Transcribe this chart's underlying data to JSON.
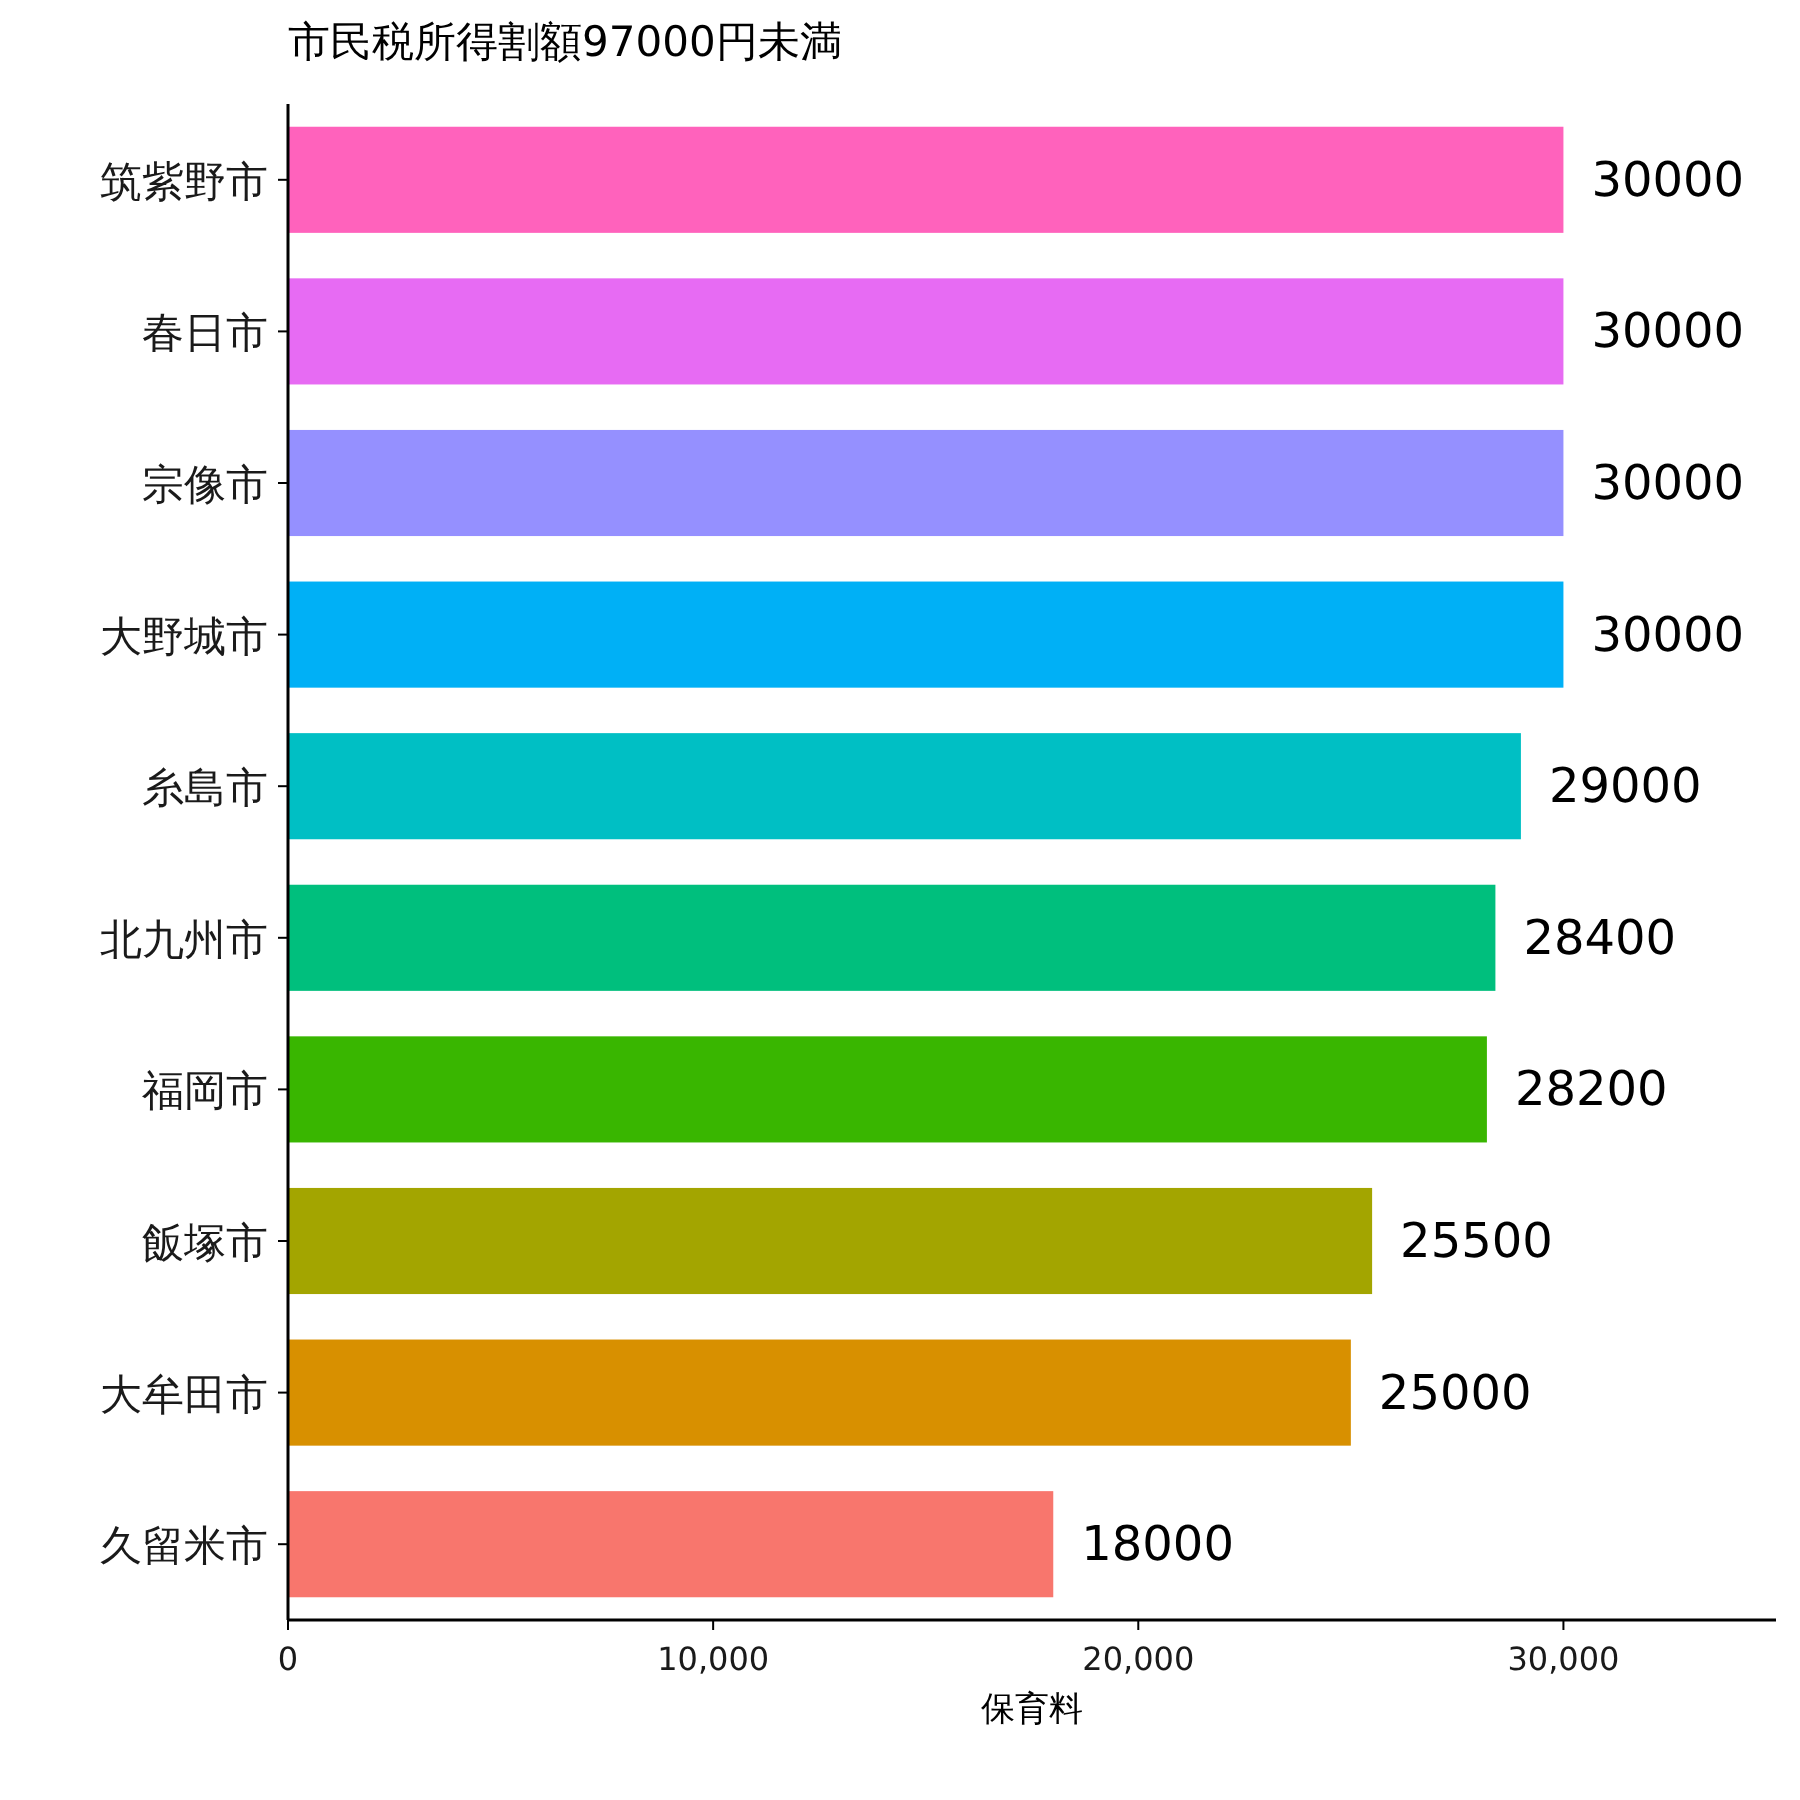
{
  "chart_data": {
    "type": "bar",
    "orientation": "horizontal",
    "title": "市民税所得割額97000円未満",
    "xlabel": "保育料",
    "categories": [
      "筑紫野市",
      "春日市",
      "宗像市",
      "大野城市",
      "糸島市",
      "北九州市",
      "福岡市",
      "飯塚市",
      "大牟田市",
      "久留米市"
    ],
    "values": [
      30000,
      30000,
      30000,
      30000,
      29000,
      28400,
      28200,
      25500,
      25000,
      18000
    ],
    "colors": [
      "#FF62BC",
      "#E76BF3",
      "#9590FF",
      "#00B0F6",
      "#00BFC4",
      "#00BF7D",
      "#39B600",
      "#A3A500",
      "#D89000",
      "#F8766D"
    ],
    "xlim": [
      0,
      35000
    ],
    "xticks": [
      {
        "value": 0,
        "label": "0"
      },
      {
        "value": 10000,
        "label": "10,000"
      },
      {
        "value": 20000,
        "label": "20,000"
      },
      {
        "value": 30000,
        "label": "30,000"
      }
    ],
    "data_labels": true,
    "grid": false
  }
}
